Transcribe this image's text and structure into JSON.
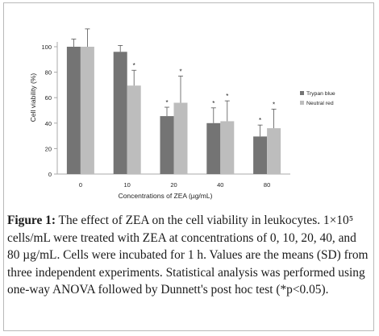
{
  "chart_data": {
    "type": "bar",
    "categories": [
      "0",
      "10",
      "20",
      "40",
      "80"
    ],
    "series": [
      {
        "name": "Trypan blue",
        "values": [
          100,
          96,
          45.5,
          40,
          29.5
        ],
        "sd": [
          6,
          5,
          7,
          12,
          9
        ],
        "significant": [
          false,
          false,
          true,
          true,
          true
        ],
        "color": "#747474"
      },
      {
        "name": "Neutral red",
        "values": [
          100,
          69.5,
          56,
          41.5,
          36
        ],
        "sd": [
          14,
          12,
          21,
          16,
          15
        ],
        "significant": [
          false,
          true,
          true,
          true,
          true
        ],
        "color": "#bdbdbd"
      }
    ],
    "xlabel": "Concentrations of ZEA (µg/mL)",
    "ylabel": "Cell viability (%)",
    "ylim": [
      0,
      100
    ],
    "yticks": [
      0,
      20,
      40,
      60,
      80,
      100
    ],
    "significance_marker": "*",
    "legend_position": "right",
    "grid": false
  },
  "caption": {
    "label": "Figure 1:",
    "text": " The effect of ZEA on the cell viability in leukocytes. 1×10⁵ cells/mL were treated with ZEA at concentrations of 0, 10, 20, 40, and 80 µg/mL. Cells were incubated for 1 h. Values are the means (SD) from three independent experiments. Statistical analysis was performed using one-way ANOVA followed by Dunnett's post hoc test (*p<0.05)."
  }
}
